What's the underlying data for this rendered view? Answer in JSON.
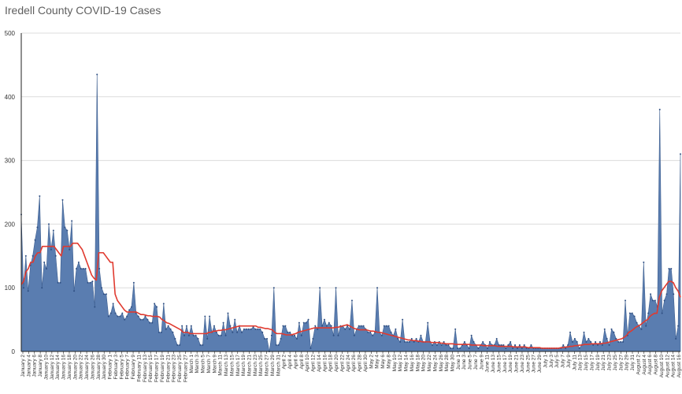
{
  "chart_data": {
    "type": "area",
    "title": "Iredell County COVID-19 Cases",
    "xlabel": "",
    "ylabel": "",
    "ylim": [
      0,
      500
    ],
    "yticks": [
      0,
      100,
      200,
      300,
      400,
      500
    ],
    "grid": true,
    "legend": "none",
    "x_labels_shown": [
      "January 2",
      "January 4",
      "January 6",
      "January 8",
      "January 10",
      "January 12",
      "January 14",
      "January 16",
      "January 18",
      "January 20",
      "January 22",
      "January 24",
      "January 26",
      "January 28",
      "January 30",
      "February 1",
      "February 3",
      "February 5",
      "February 7",
      "February 9",
      "February 11",
      "February 13",
      "February 15",
      "February 17",
      "February 19",
      "February 21",
      "February 23",
      "February 25",
      "February 27",
      "March 1",
      "March 3",
      "March 5",
      "March 7",
      "March 9",
      "March 11",
      "March 13",
      "March 15",
      "March 17",
      "March 19",
      "March 21",
      "March 23",
      "March 25",
      "March 27",
      "March 29",
      "March 31",
      "April 2",
      "April 4",
      "April 6",
      "April 8",
      "April 10",
      "April 12",
      "April 14",
      "April 16",
      "April 18",
      "April 20",
      "April 22",
      "April 24",
      "April 26",
      "April 28",
      "April 30",
      "May 2",
      "May 4",
      "May 6",
      "May 8",
      "May 10",
      "May 12",
      "May 14",
      "May 16",
      "May 18",
      "May 20",
      "May 22",
      "May 24",
      "May 26",
      "May 28",
      "May 30",
      "June 1",
      "June 3",
      "June 5",
      "June 7",
      "June 9",
      "June 11",
      "June 13",
      "June 15",
      "June 17",
      "June 19",
      "June 21",
      "June 23",
      "June 25",
      "June 27",
      "June 29",
      "July 1",
      "July 3",
      "July 5",
      "July 7",
      "July 9",
      "July 11",
      "July 13",
      "July 15",
      "July 17",
      "July 19",
      "July 21",
      "July 23",
      "July 25",
      "July 27",
      "July 29",
      "July 31",
      "August 2",
      "August 4",
      "August 6",
      "August 8",
      "August 10",
      "August 12",
      "August 14",
      "August 16"
    ],
    "series": [
      {
        "name": "",
        "kind": "area",
        "color": "#5a7db0",
        "values": [
          215,
          100,
          150,
          95,
          135,
          150,
          175,
          195,
          244,
          100,
          140,
          130,
          200,
          160,
          190,
          150,
          108,
          108,
          238,
          195,
          190,
          160,
          205,
          95,
          130,
          140,
          130,
          130,
          130,
          108,
          108,
          110,
          70,
          435,
          130,
          100,
          90,
          90,
          55,
          60,
          75,
          60,
          55,
          55,
          60,
          50,
          55,
          65,
          70,
          108,
          60,
          55,
          50,
          50,
          55,
          50,
          45,
          45,
          75,
          70,
          30,
          30,
          75,
          35,
          40,
          35,
          30,
          20,
          10,
          10,
          40,
          25,
          40,
          25,
          40,
          25,
          25,
          20,
          10,
          10,
          55,
          20,
          55,
          30,
          40,
          30,
          25,
          25,
          45,
          25,
          60,
          40,
          30,
          50,
          30,
          40,
          30,
          35,
          35,
          35,
          35,
          38,
          35,
          35,
          35,
          30,
          20,
          20,
          0,
          25,
          100,
          10,
          10,
          20,
          40,
          40,
          30,
          30,
          25,
          25,
          20,
          45,
          25,
          45,
          45,
          50,
          5,
          20,
          40,
          35,
          100,
          40,
          50,
          40,
          45,
          40,
          25,
          100,
          25,
          40,
          40,
          35,
          40,
          35,
          80,
          25,
          35,
          40,
          40,
          40,
          35,
          30,
          30,
          25,
          30,
          100,
          30,
          25,
          40,
          40,
          40,
          30,
          25,
          35,
          20,
          15,
          50,
          15,
          15,
          15,
          20,
          15,
          20,
          15,
          25,
          15,
          15,
          45,
          15,
          10,
          15,
          10,
          15,
          10,
          15,
          10,
          10,
          5,
          5,
          35,
          5,
          5,
          10,
          15,
          10,
          5,
          25,
          15,
          10,
          5,
          10,
          15,
          10,
          5,
          15,
          10,
          10,
          20,
          10,
          10,
          10,
          5,
          10,
          15,
          5,
          10,
          5,
          10,
          5,
          10,
          5,
          5,
          10,
          5,
          5,
          5,
          5,
          5,
          5,
          5,
          5,
          5,
          5,
          5,
          5,
          5,
          10,
          5,
          10,
          30,
          15,
          20,
          15,
          5,
          10,
          30,
          15,
          20,
          15,
          10,
          15,
          10,
          15,
          10,
          35,
          20,
          10,
          35,
          30,
          20,
          15,
          15,
          15,
          80,
          25,
          60,
          60,
          55,
          45,
          40,
          35,
          140,
          40,
          60,
          90,
          80,
          80,
          70,
          380,
          60,
          80,
          90,
          130,
          130,
          90,
          20,
          40,
          310
        ]
      },
      {
        "name": "",
        "kind": "line",
        "color": "#e03a2f",
        "values": [
          105,
          110,
          125,
          130,
          140,
          140,
          150,
          155,
          155,
          165,
          165,
          165,
          165,
          165,
          165,
          160,
          155,
          150,
          165,
          165,
          165,
          165,
          170,
          170,
          170,
          165,
          160,
          150,
          140,
          130,
          120,
          115,
          112,
          155,
          155,
          155,
          150,
          145,
          140,
          140,
          90,
          80,
          75,
          70,
          65,
          62,
          62,
          62,
          62,
          62,
          60,
          58,
          58,
          57,
          56,
          56,
          55,
          55,
          55,
          54,
          50,
          48,
          45,
          44,
          42,
          40,
          38,
          36,
          34,
          30,
          30,
          30,
          28,
          28,
          28,
          28,
          28,
          28,
          28,
          28,
          30,
          30,
          32,
          32,
          33,
          33,
          34,
          34,
          35,
          36,
          37,
          38,
          39,
          40,
          40,
          40,
          40,
          40,
          40,
          40,
          40,
          38,
          38,
          37,
          36,
          36,
          35,
          34,
          30,
          28,
          28,
          28,
          27,
          26,
          26,
          26,
          27,
          28,
          30,
          31,
          32,
          33,
          34,
          35,
          36,
          37,
          37,
          37,
          37,
          37,
          37,
          37,
          37,
          37,
          38,
          38,
          39,
          40,
          41,
          42,
          40,
          38,
          36,
          35,
          34,
          34,
          34,
          34,
          33,
          32,
          32,
          31,
          30,
          30,
          29,
          28,
          27,
          26,
          25,
          24,
          23,
          22,
          21,
          20,
          19,
          18,
          18,
          17,
          17,
          16,
          16,
          15,
          15,
          15,
          15,
          14,
          14,
          14,
          14,
          13,
          13,
          12,
          12,
          12,
          12,
          11,
          11,
          11,
          11,
          11,
          11,
          11,
          10,
          10,
          10,
          10,
          10,
          9,
          9,
          9,
          9,
          9,
          9,
          8,
          8,
          8,
          8,
          8,
          8,
          8,
          7,
          7,
          7,
          7,
          7,
          7,
          6,
          6,
          6,
          6,
          6,
          6,
          5,
          5,
          5,
          5,
          5,
          5,
          5,
          5,
          6,
          6,
          7,
          7,
          8,
          8,
          9,
          9,
          10,
          10,
          11,
          11,
          11,
          12,
          12,
          12,
          12,
          12,
          13,
          13,
          14,
          15,
          16,
          17,
          18,
          19,
          20,
          22,
          25,
          30,
          32,
          35,
          38,
          40,
          42,
          45,
          48,
          50,
          55,
          58,
          60,
          60,
          85,
          95,
          100,
          105,
          110,
          110,
          108,
          100,
          95,
          85
        ]
      }
    ]
  }
}
